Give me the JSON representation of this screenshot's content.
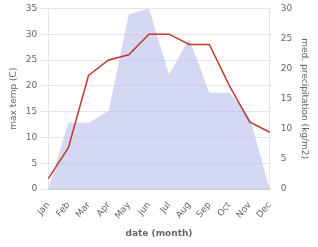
{
  "chart_data": {
    "type": "line",
    "categories": [
      "Jan",
      "Feb",
      "Mar",
      "Apr",
      "May",
      "Jun",
      "Jul",
      "Aug",
      "Sep",
      "Oct",
      "Nov",
      "Dec"
    ],
    "series": [
      {
        "type": "area",
        "color": "#b0b8e8",
        "axis": "y2",
        "values": [
          0,
          11,
          11,
          13,
          29,
          30,
          19,
          25,
          16,
          16,
          12,
          0
        ]
      },
      {
        "type": "line",
        "color": "#c0392b",
        "values": [
          2,
          8,
          22,
          25,
          26,
          30,
          30,
          28,
          28,
          20,
          13,
          11
        ]
      }
    ],
    "x_label": "date (month)",
    "y_label": "max temp (C)",
    "y2_label": "med. precipitation (kg/m2)",
    "ylim": [
      0,
      35
    ],
    "yticks": [
      0,
      5,
      10,
      15,
      20,
      25,
      30,
      35
    ],
    "y2lim": [
      0,
      30
    ],
    "y2ticks": [
      0,
      5,
      10,
      15,
      20,
      25,
      30
    ],
    "grid": true
  }
}
